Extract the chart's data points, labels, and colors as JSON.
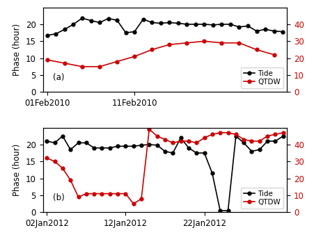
{
  "panel_a": {
    "xlabel_ticks": [
      "01Feb2010",
      "11Feb2010"
    ],
    "xlabel_tick_positions": [
      0,
      10
    ],
    "black_x": [
      0,
      1,
      2,
      3,
      4,
      5,
      6,
      7,
      8,
      9,
      10,
      11,
      12,
      13,
      14,
      15,
      16,
      17,
      18,
      19,
      20,
      21,
      22,
      23,
      24,
      25,
      26,
      27
    ],
    "black_y": [
      16.7,
      17.2,
      18.5,
      20.0,
      21.8,
      21.1,
      20.5,
      21.7,
      21.2,
      17.5,
      17.8,
      21.5,
      20.5,
      20.3,
      20.5,
      20.3,
      20.0,
      20.0,
      20.0,
      19.8,
      20.0,
      20.0,
      19.2,
      19.5,
      18.0,
      18.5,
      18.0,
      17.8
    ],
    "red_x": [
      0,
      2,
      4,
      6,
      8,
      10,
      12,
      14,
      16,
      18,
      20,
      22,
      24,
      26
    ],
    "red_y": [
      19,
      17,
      15,
      15,
      18,
      21,
      25,
      28,
      29,
      30,
      29,
      29,
      25,
      22
    ],
    "left_ylim": [
      0,
      25
    ],
    "left_yticks": [
      0,
      5,
      10,
      15,
      20
    ],
    "right_ylim": [
      0,
      50
    ],
    "right_yticks": [
      0,
      10,
      20,
      30,
      40
    ],
    "xlim": [
      -0.5,
      27.5
    ]
  },
  "panel_b": {
    "xlabel_ticks": [
      "02Jan2012",
      "12Jan2012",
      "22Jan2012"
    ],
    "xlabel_tick_positions": [
      0,
      10,
      20
    ],
    "black_x": [
      0,
      1,
      2,
      3,
      4,
      5,
      6,
      7,
      8,
      9,
      10,
      11,
      12,
      13,
      14,
      15,
      16,
      17,
      18,
      19,
      20,
      21,
      22,
      23,
      24,
      25,
      26,
      27,
      28,
      29,
      30
    ],
    "black_y": [
      21.0,
      20.5,
      22.5,
      18.5,
      20.5,
      20.5,
      19.0,
      19.0,
      19.0,
      19.5,
      19.5,
      19.5,
      19.8,
      20.0,
      19.8,
      18.0,
      17.5,
      22.0,
      19.0,
      17.5,
      17.5,
      11.5,
      0.5,
      0.5,
      22.5,
      20.5,
      18.0,
      18.5,
      21.0,
      21.0,
      22.5
    ],
    "red_x": [
      0,
      1,
      2,
      3,
      4,
      5,
      6,
      7,
      8,
      9,
      10,
      11,
      12,
      13,
      14,
      15,
      16,
      17,
      18,
      19,
      20,
      21,
      22,
      23,
      24,
      25,
      26,
      27,
      28,
      29,
      30
    ],
    "red_y": [
      32,
      30,
      26,
      19,
      9,
      11,
      11,
      11,
      11,
      11,
      11,
      5,
      8,
      49,
      45,
      43,
      41,
      42,
      42,
      41,
      44,
      46,
      47,
      47,
      46,
      43,
      42,
      42,
      45,
      46,
      47
    ],
    "left_ylim": [
      0,
      25
    ],
    "left_yticks": [
      0,
      5,
      10,
      15,
      20
    ],
    "right_ylim": [
      0,
      50
    ],
    "right_yticks": [
      0,
      10,
      20,
      30,
      40
    ],
    "xlim": [
      -0.5,
      30.5
    ]
  },
  "ylabel": "Phase (hour)",
  "legend_tide": "Tide",
  "legend_qtdw": "QTDW",
  "black_color": "#000000",
  "red_color": "#cc0000",
  "marker": "o",
  "markersize": 3.5,
  "linewidth": 1.2,
  "font_size": 8.5,
  "label_a": "(a)",
  "label_b": "(b)"
}
